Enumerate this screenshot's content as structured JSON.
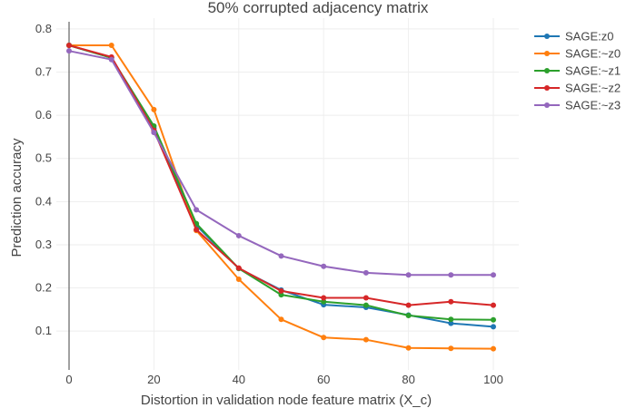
{
  "chart_data": {
    "type": "line",
    "title": "50% corrupted adjacency matrix",
    "xlabel": "Distortion in validation node feature matrix (X_c)",
    "ylabel": "Prediction accuracy",
    "xlim": [
      -3,
      106
    ],
    "ylim": [
      0.01,
      0.825
    ],
    "x_ticks": [
      0,
      20,
      40,
      60,
      80,
      100
    ],
    "y_ticks": [
      0.1,
      0.2,
      0.3,
      0.4,
      0.5,
      0.6,
      0.7,
      0.8
    ],
    "x_tick_labels": [
      "0",
      "20",
      "40",
      "60",
      "80",
      "100"
    ],
    "y_tick_labels": [
      "0.1",
      "0.2",
      "0.3",
      "0.4",
      "0.5",
      "0.6",
      "0.7",
      "0.8"
    ],
    "grid": true,
    "legend_position": "top-right",
    "x": [
      0,
      10,
      20,
      30,
      40,
      50,
      60,
      70,
      80,
      90,
      100
    ],
    "series": [
      {
        "name": "SAGE:z0",
        "color": "#1f77b4",
        "values": [
          0.762,
          0.733,
          0.57,
          0.345,
          0.245,
          0.195,
          0.161,
          0.155,
          0.137,
          0.118,
          0.11
        ]
      },
      {
        "name": "SAGE:~z0",
        "color": "#ff7f0e",
        "values": [
          0.762,
          0.762,
          0.613,
          0.333,
          0.22,
          0.127,
          0.085,
          0.08,
          0.061,
          0.06,
          0.059
        ]
      },
      {
        "name": "SAGE:~z1",
        "color": "#2ca02c",
        "values": [
          0.762,
          0.733,
          0.575,
          0.349,
          0.245,
          0.184,
          0.168,
          0.16,
          0.136,
          0.127,
          0.126
        ]
      },
      {
        "name": "SAGE:~z2",
        "color": "#d62728",
        "values": [
          0.762,
          0.735,
          0.565,
          0.335,
          0.246,
          0.193,
          0.177,
          0.177,
          0.16,
          0.168,
          0.16
        ]
      },
      {
        "name": "SAGE:~z3",
        "color": "#9467bd",
        "values": [
          0.749,
          0.729,
          0.56,
          0.381,
          0.321,
          0.274,
          0.25,
          0.235,
          0.23,
          0.23,
          0.23
        ]
      }
    ]
  }
}
